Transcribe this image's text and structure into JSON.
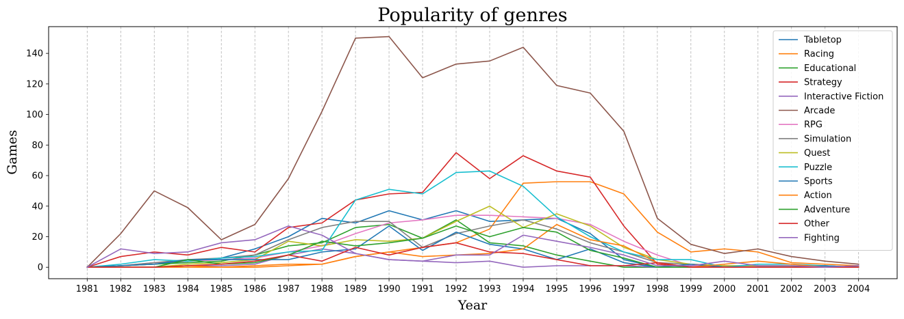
{
  "chart_data": {
    "type": "line",
    "title": "Popularity of genres",
    "xlabel": "Year",
    "ylabel": "Games",
    "x": [
      1981,
      1982,
      1983,
      1984,
      1985,
      1986,
      1987,
      1988,
      1989,
      1990,
      1991,
      1992,
      1993,
      1994,
      1995,
      1996,
      1997,
      1998,
      1999,
      2000,
      2001,
      2002,
      2003,
      2004
    ],
    "xlim": [
      1979.85,
      2005.15
    ],
    "ylim": [
      -7.5,
      157.5
    ],
    "yticks": [
      0,
      20,
      40,
      60,
      80,
      100,
      120,
      140
    ],
    "grid": "vertical dashed",
    "legend_position": "top-right",
    "series": [
      {
        "name": "Tabletop",
        "color": "#1f77b4",
        "values": [
          0,
          1,
          2,
          4,
          6,
          12,
          20,
          32,
          29,
          37,
          31,
          37,
          30,
          31,
          32,
          22,
          5,
          0,
          0,
          0,
          0,
          0,
          0,
          0
        ]
      },
      {
        "name": "Racing",
        "color": "#ff7f0e",
        "values": [
          0,
          0,
          0,
          0,
          0,
          1,
          2,
          2,
          7,
          10,
          13,
          16,
          25,
          55,
          56,
          56,
          48,
          23,
          10,
          12,
          10,
          3,
          2,
          1
        ]
      },
      {
        "name": "Educational",
        "color": "#2ca02c",
        "values": [
          0,
          1,
          2,
          3,
          4,
          8,
          14,
          16,
          26,
          28,
          19,
          31,
          16,
          14,
          8,
          4,
          0,
          0,
          0,
          0,
          0,
          0,
          0,
          0
        ]
      },
      {
        "name": "Strategy",
        "color": "#d62728",
        "values": [
          0,
          7,
          10,
          8,
          13,
          10,
          26,
          29,
          44,
          48,
          49,
          75,
          58,
          73,
          63,
          59,
          27,
          2,
          0,
          0,
          0,
          0,
          0,
          0
        ]
      },
      {
        "name": "Interactive Fiction",
        "color": "#9467bd",
        "values": [
          0,
          0,
          0,
          1,
          1,
          2,
          8,
          12,
          9,
          5,
          4,
          3,
          4,
          0,
          1,
          1,
          1,
          0,
          0,
          0,
          0,
          0,
          0,
          0
        ]
      },
      {
        "name": "Arcade",
        "color": "#8c564b",
        "values": [
          0,
          22,
          50,
          39,
          18,
          28,
          58,
          102,
          150,
          151,
          124,
          133,
          135,
          144,
          119,
          114,
          89,
          32,
          15,
          9,
          12,
          7,
          4,
          2
        ]
      },
      {
        "name": "RPG",
        "color": "#e377c2",
        "values": [
          0,
          1,
          3,
          4,
          5,
          6,
          10,
          14,
          22,
          29,
          31,
          34,
          34,
          33,
          32,
          28,
          17,
          8,
          1,
          1,
          0,
          0,
          0,
          0
        ]
      },
      {
        "name": "Simulation",
        "color": "#7f7f7f",
        "values": [
          0,
          1,
          3,
          5,
          6,
          8,
          18,
          26,
          30,
          30,
          13,
          22,
          27,
          31,
          25,
          16,
          10,
          3,
          2,
          1,
          1,
          1,
          1,
          0
        ]
      },
      {
        "name": "Quest",
        "color": "#bcbd22",
        "values": [
          0,
          0,
          0,
          2,
          3,
          5,
          17,
          14,
          18,
          17,
          19,
          30,
          40,
          26,
          35,
          27,
          13,
          5,
          2,
          1,
          1,
          1,
          0,
          0
        ]
      },
      {
        "name": "Puzzle",
        "color": "#17becf",
        "values": [
          0,
          2,
          5,
          4,
          6,
          7,
          10,
          11,
          44,
          51,
          48,
          62,
          63,
          53,
          33,
          20,
          10,
          5,
          5,
          0,
          2,
          2,
          1,
          0
        ]
      },
      {
        "name": "Sports",
        "color": "#1f77b4",
        "values": [
          0,
          1,
          2,
          5,
          5,
          5,
          5,
          10,
          12,
          27,
          11,
          23,
          15,
          12,
          5,
          12,
          3,
          0,
          2,
          0,
          0,
          0,
          1,
          0
        ]
      },
      {
        "name": "Action",
        "color": "#ff7f0e",
        "values": [
          0,
          0,
          0,
          1,
          0,
          0,
          1,
          2,
          7,
          10,
          7,
          8,
          9,
          12,
          28,
          18,
          14,
          3,
          0,
          2,
          4,
          2,
          0,
          0
        ]
      },
      {
        "name": "Adventure",
        "color": "#2ca02c",
        "values": [
          0,
          0,
          0,
          5,
          2,
          3,
          8,
          17,
          14,
          16,
          19,
          27,
          20,
          26,
          23,
          11,
          6,
          0,
          0,
          0,
          0,
          0,
          0,
          0
        ]
      },
      {
        "name": "Other",
        "color": "#d62728",
        "values": [
          0,
          0,
          0,
          1,
          2,
          4,
          8,
          4,
          13,
          8,
          13,
          16,
          10,
          9,
          5,
          1,
          1,
          3,
          0,
          0,
          0,
          0,
          0,
          0
        ]
      },
      {
        "name": "Fighting",
        "color": "#9467bd",
        "values": [
          0,
          12,
          9,
          10,
          16,
          18,
          27,
          21,
          9,
          5,
          4,
          8,
          8,
          21,
          17,
          13,
          8,
          1,
          1,
          4,
          1,
          1,
          0,
          1
        ]
      }
    ]
  }
}
